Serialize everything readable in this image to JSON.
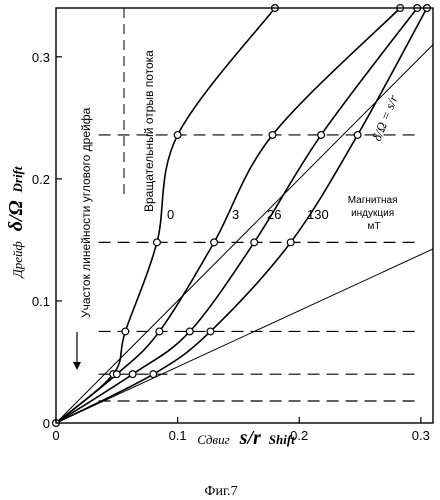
{
  "figure_caption": "Фиг.7",
  "chart_data": {
    "type": "line",
    "xlabel": {
      "ru": "Сдвиг",
      "symbol": "s/r",
      "en": "Shift"
    },
    "ylabel": {
      "ru": "Дрейф",
      "symbol": "δ/Ω",
      "en": "Drift"
    },
    "xlim": [
      0,
      0.31
    ],
    "ylim": [
      0,
      0.34
    ],
    "x_ticks": [
      0,
      0.1,
      0.2,
      0.3
    ],
    "x_tick_labels": [
      "0",
      "0.1",
      "0.2",
      "0.3"
    ],
    "y_ticks": [
      0,
      0.1,
      0.2,
      0.3
    ],
    "y_tick_labels": [
      "0",
      "0.1",
      "0.2",
      "0.3"
    ],
    "grid": false,
    "reference_lines": [
      {
        "label": "δ/Ω = s/r",
        "slope": 1.0
      },
      {
        "label": "",
        "slope": 0.46
      }
    ],
    "dashed_levels": [
      0.018,
      0.04,
      0.075,
      0.148,
      0.236
    ],
    "series_group_label": "Магнитная индукция мТ",
    "series": [
      {
        "name": "0",
        "x": [
          0,
          0.047,
          0.057,
          0.083,
          0.1,
          0.18
        ],
        "y": [
          0,
          0.04,
          0.075,
          0.148,
          0.236,
          0.34
        ]
      },
      {
        "name": "3",
        "x": [
          0,
          0.05,
          0.085,
          0.13,
          0.178,
          0.283
        ],
        "y": [
          0,
          0.04,
          0.075,
          0.148,
          0.236,
          0.34
        ]
      },
      {
        "name": "26",
        "x": [
          0,
          0.063,
          0.11,
          0.163,
          0.218,
          0.297
        ],
        "y": [
          0,
          0.04,
          0.075,
          0.148,
          0.236,
          0.34
        ]
      },
      {
        "name": "130",
        "x": [
          0,
          0.08,
          0.127,
          0.193,
          0.248,
          0.305
        ],
        "y": [
          0,
          0.04,
          0.075,
          0.148,
          0.236,
          0.34
        ]
      }
    ],
    "annotations": [
      {
        "text": "Вращательный отрыв потока",
        "x": 0.058,
        "y_range": [
          0.19,
          0.34
        ]
      },
      {
        "text": "Участок линейности углового дрейфа",
        "x": 0.018,
        "y_range": [
          0.045,
          0.3
        ]
      }
    ]
  }
}
